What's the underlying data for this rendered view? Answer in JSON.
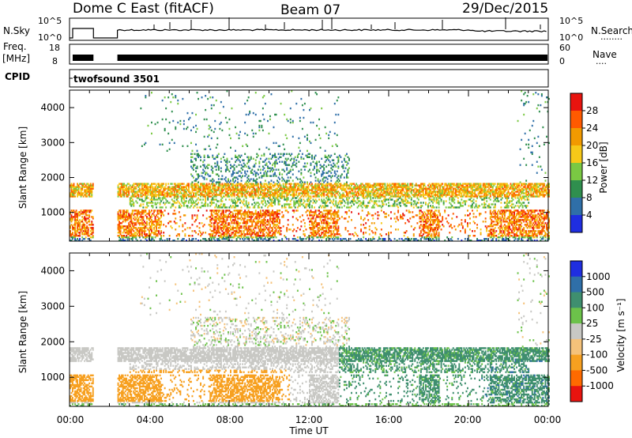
{
  "header": {
    "radar": "Dome C East (fitACF)",
    "beam": "Beam 07",
    "date": "29/Dec/2015"
  },
  "strip_labels": {
    "nsky": "N.Sky",
    "nsearch": "N.Search",
    "nsearch_dots": "........",
    "freq": "Freq.",
    "freq_unit": "[MHz]",
    "nave": "Nave",
    "nave_dots": "....",
    "cpid": "CPID",
    "cpid_value": "twofsound 3501",
    "noise_ticks_left": [
      "10^5",
      "10^0"
    ],
    "noise_ticks_right": [
      "10^5",
      "10^0"
    ],
    "freq_ticks": [
      "18",
      "8"
    ],
    "nave_ticks": [
      "60",
      "0"
    ]
  },
  "axes": {
    "ylabel": "Slant Range [km]",
    "yticks": [
      "4000",
      "3000",
      "2000",
      "1000"
    ],
    "xticks": [
      "00:00",
      "04:00",
      "08:00",
      "12:00",
      "16:00",
      "20:00",
      "00:00"
    ],
    "xlabel": "Time UT"
  },
  "colorbars": {
    "power": {
      "label": "Power [dB]",
      "ticks": [
        "28",
        "24",
        "20",
        "16",
        "12",
        "8",
        "4"
      ],
      "colors": [
        "#e8140f",
        "#ff5a00",
        "#f29a00",
        "#f7c918",
        "#7ac943",
        "#2f8f4e",
        "#2f6fa8",
        "#1f2ee0"
      ]
    },
    "velocity": {
      "label": "Velocity [m s⁻¹]",
      "ticks": [
        "1000",
        "500",
        "100",
        "25",
        "-25",
        "-100",
        "-500",
        "-1000"
      ],
      "colors": [
        "#1f2ee0",
        "#2f6fa8",
        "#3f8f6f",
        "#6cc24a",
        "#c8c8c4",
        "#f5c27a",
        "#f7a020",
        "#ff6a00",
        "#e8140f"
      ]
    }
  },
  "chart_data": [
    {
      "type": "heatmap",
      "title": "Power",
      "xlabel": "Time UT",
      "ylabel": "Slant Range [km]",
      "xlim": [
        0,
        24
      ],
      "ylim": [
        180,
        4500
      ],
      "colorbar": {
        "label": "Power [dB]",
        "range": [
          0,
          32
        ]
      },
      "data_gap_hours": [
        1.2,
        2.4
      ],
      "features": [
        {
          "name": "band",
          "t": [
            0,
            23.5
          ],
          "range_km": [
            1450,
            1800
          ],
          "value_db": 18
        },
        {
          "name": "near",
          "t": [
            0,
            24
          ],
          "range_km": [
            200,
            1000
          ],
          "value_db": 22
        },
        {
          "name": "far",
          "t": [
            3.5,
            13.5
          ],
          "range_km": [
            2000,
            4200
          ],
          "value_db": 10
        }
      ]
    },
    {
      "type": "heatmap",
      "title": "Velocity",
      "xlabel": "Time UT",
      "ylabel": "Slant Range [km]",
      "xlim": [
        0,
        24
      ],
      "ylim": [
        180,
        4500
      ],
      "colorbar": {
        "label": "Velocity [m s⁻¹]",
        "range": [
          -1000,
          1000
        ]
      },
      "data_gap_hours": [
        1.2,
        2.4
      ],
      "features": [
        {
          "name": "band",
          "t": [
            0,
            23.5
          ],
          "range_km": [
            1450,
            1800
          ],
          "value_ms": 0
        },
        {
          "name": "early",
          "t": [
            0,
            10
          ],
          "range_km": [
            400,
            1200
          ],
          "value_ms": -300
        },
        {
          "name": "late",
          "t": [
            14,
            24
          ],
          "range_km": [
            400,
            1800
          ],
          "value_ms": 200
        }
      ]
    }
  ]
}
